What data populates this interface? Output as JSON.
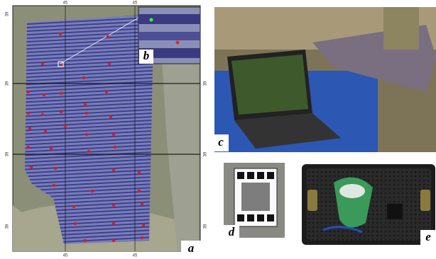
{
  "panel_labels": [
    "a",
    "b",
    "c",
    "d",
    "e"
  ],
  "map_ticks": {
    "top": [
      "45",
      "45"
    ],
    "bottom": [
      "45",
      "45"
    ],
    "left": [
      "39",
      "39",
      "39",
      "39"
    ],
    "right": [
      "39",
      "39",
      "39"
    ]
  }
}
